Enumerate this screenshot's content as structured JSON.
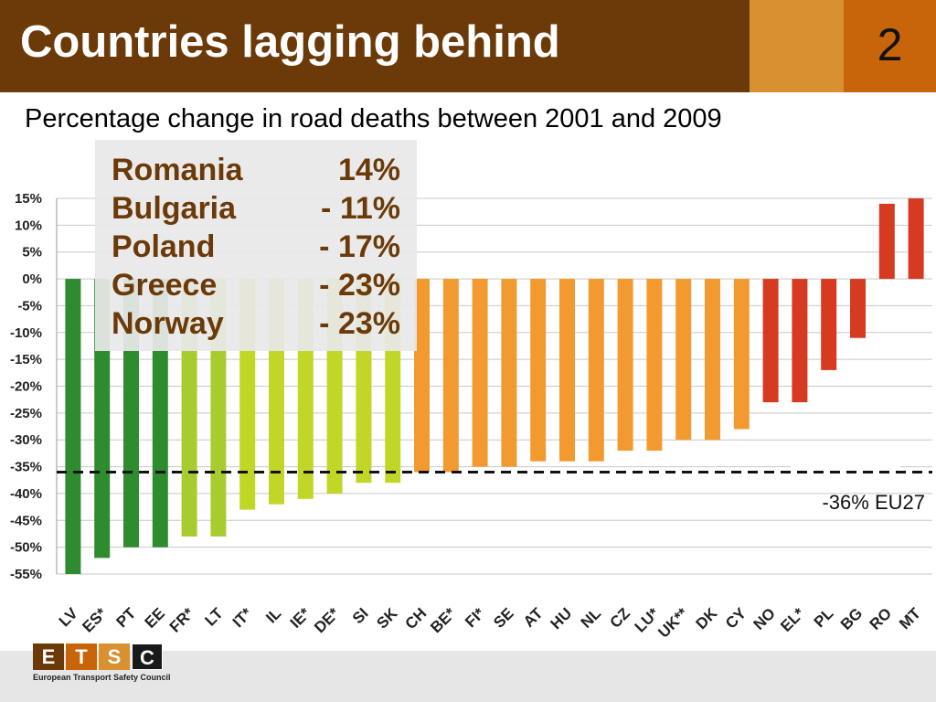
{
  "header": {
    "title": "Countries lagging behind",
    "page_number": "2"
  },
  "subtitle": "Percentage change in road deaths between 2001 and 2009",
  "callout": {
    "rows": [
      {
        "country": "Romania",
        "value": "14%"
      },
      {
        "country": "Bulgaria",
        "value": "- 11%"
      },
      {
        "country": "Poland",
        "value": "- 17%"
      },
      {
        "country": "Greece",
        "value": "- 23%"
      },
      {
        "country": "Norway",
        "value": "- 23%"
      }
    ]
  },
  "logo": {
    "letters": [
      "E",
      "T",
      "S",
      "C"
    ],
    "caption": "European Transport Safety Council",
    "colors": [
      "#6b3a08",
      "#c8640a",
      "#d99030",
      "#1a1a1a"
    ]
  },
  "chart_data": {
    "type": "bar",
    "categories": [
      "LV",
      "ES*",
      "PT",
      "EE",
      "FR*",
      "LT",
      "IT*",
      "IL",
      "IE*",
      "DE*",
      "SI",
      "SK",
      "CH",
      "BE*",
      "FI*",
      "SE",
      "AT",
      "HU",
      "NL",
      "CZ",
      "LU*",
      "UK**",
      "DK",
      "CY",
      "NO",
      "EL*",
      "PL",
      "BG",
      "RO",
      "MT"
    ],
    "values": [
      -55,
      -52,
      -50,
      -50,
      -48,
      -48,
      -43,
      -42,
      -41,
      -40,
      -38,
      -38,
      -36,
      -36,
      -35,
      -35,
      -34,
      -34,
      -34,
      -32,
      -32,
      -30,
      -30,
      -28,
      -23,
      -23,
      -17,
      -11,
      14,
      15
    ],
    "bar_colors": [
      "#2e8b2e",
      "#2e8b2e",
      "#2e8b2e",
      "#2e8b2e",
      "#a8cc30",
      "#a8cc30",
      "#c2d628",
      "#c2d628",
      "#c2d628",
      "#c2d628",
      "#c2d628",
      "#c2d628",
      "#f29a30",
      "#f29a30",
      "#f29a30",
      "#f29a30",
      "#f29a30",
      "#f29a30",
      "#f29a30",
      "#f29a30",
      "#f29a30",
      "#f29a30",
      "#f29a30",
      "#f29a30",
      "#d63a20",
      "#d63a20",
      "#d63a20",
      "#d63a20",
      "#d63a20",
      "#d63a20"
    ],
    "ylim": [
      -55,
      15
    ],
    "ytick_values": [
      15,
      10,
      5,
      0,
      -5,
      -10,
      -15,
      -20,
      -25,
      -30,
      -35,
      -40,
      -45,
      -50,
      -55
    ],
    "ytick_labels": [
      "15%",
      "10%",
      "5%",
      "0%",
      "-5%",
      "-10%",
      "-15%",
      "-20%",
      "-25%",
      "-30%",
      "-35%",
      "-40%",
      "-45%",
      "-50%",
      "-55%"
    ],
    "reference_line": {
      "value": -36,
      "label": "-36% EU27",
      "style": "dashed"
    },
    "grid": true,
    "title": "",
    "xlabel": "",
    "ylabel": ""
  }
}
